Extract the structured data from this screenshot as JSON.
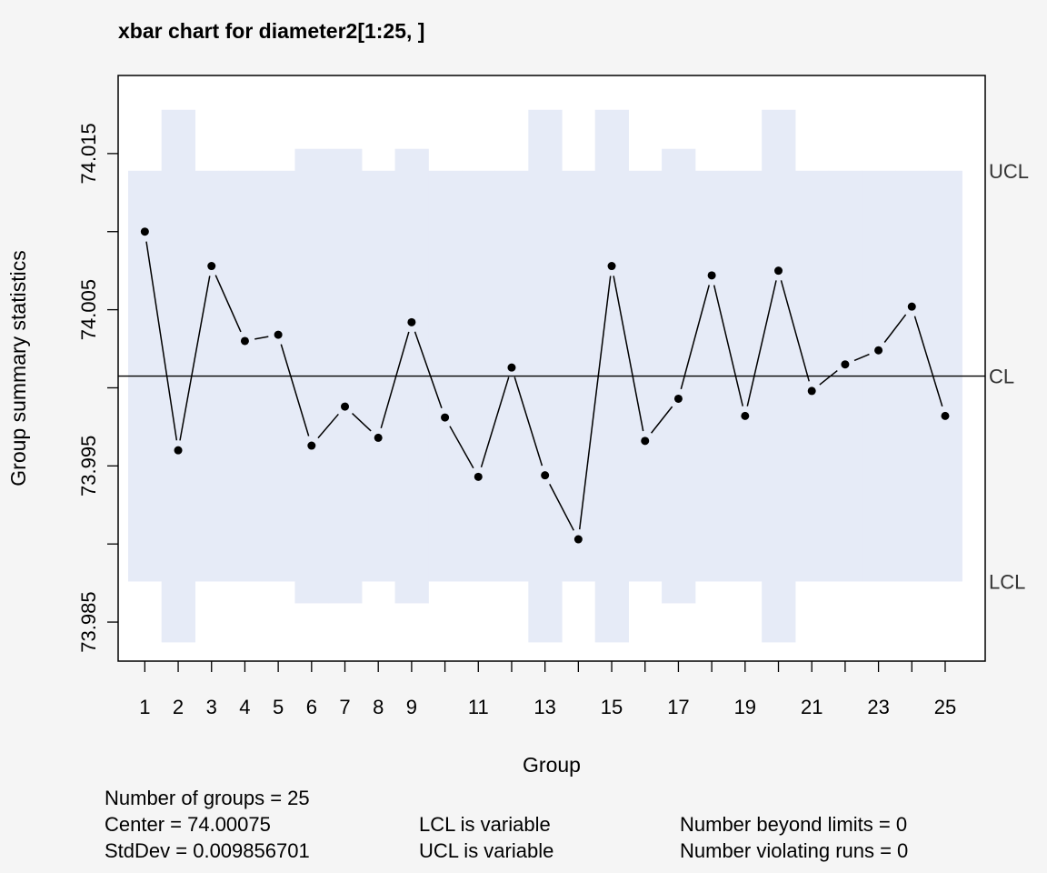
{
  "chart_data": {
    "type": "line",
    "title": "xbar chart for diameter2[1:25, ]",
    "xlabel": "Group",
    "ylabel": "Group summary statistics",
    "x": [
      1,
      2,
      3,
      4,
      5,
      6,
      7,
      8,
      9,
      10,
      11,
      12,
      13,
      14,
      15,
      16,
      17,
      18,
      19,
      20,
      21,
      22,
      23,
      24,
      25
    ],
    "values": [
      74.01,
      73.996,
      74.0078,
      74.003,
      74.0034,
      73.9963,
      73.9988,
      73.9968,
      74.0042,
      73.9981,
      73.9943,
      74.0013,
      73.9944,
      73.9903,
      74.0078,
      73.9966,
      73.9993,
      74.0072,
      73.9982,
      74.0075,
      73.9998,
      74.0015,
      74.0024,
      74.0052,
      73.9982
    ],
    "center": 74.00075,
    "ucl": [
      74.0139,
      74.0178,
      74.0139,
      74.0139,
      74.0139,
      74.0153,
      74.0153,
      74.0139,
      74.0153,
      74.0139,
      74.0139,
      74.0139,
      74.0178,
      74.0139,
      74.0178,
      74.0139,
      74.0153,
      74.0139,
      74.0139,
      74.0178,
      74.0139,
      74.0139,
      74.0139,
      74.0139,
      74.0139
    ],
    "lcl": [
      73.9876,
      73.9837,
      73.9876,
      73.9876,
      73.9876,
      73.9862,
      73.9862,
      73.9876,
      73.9862,
      73.9876,
      73.9876,
      73.9876,
      73.9837,
      73.9876,
      73.9837,
      73.9876,
      73.9862,
      73.9876,
      73.9876,
      73.9837,
      73.9876,
      73.9876,
      73.9876,
      73.9876,
      73.9876
    ],
    "ylim": [
      73.9825,
      74.02
    ],
    "xlim": [
      0.2,
      26.2
    ],
    "yticks": [
      73.985,
      73.99,
      73.995,
      74.0,
      74.005,
      74.01,
      74.015
    ],
    "ytick_labels": [
      "73.985",
      "",
      "73.995",
      "",
      "74.005",
      "",
      "74.015"
    ],
    "xtick_labels": [
      "1",
      "2",
      "3",
      "4",
      "5",
      "6",
      "7",
      "8",
      "9",
      "",
      "11",
      "",
      "13",
      "",
      "15",
      "",
      "17",
      "",
      "19",
      "",
      "21",
      "",
      "23",
      "",
      "25"
    ],
    "limit_labels": {
      "ucl": "UCL",
      "center": "CL",
      "lcl": "LCL"
    },
    "grid": false,
    "colors": {
      "limits_fill": "#e6ebf7",
      "line": "#000000",
      "background": "#f5f5f5",
      "plot_background": "#ffffff"
    }
  },
  "stats": {
    "groups": "Number of groups = 25",
    "center": "Center = 74.00075",
    "stddev": "StdDev = 0.009856701",
    "lcl_note": "LCL is variable",
    "ucl_note": "UCL is variable",
    "beyond": "Number beyond limits = 0",
    "violating": "Number violating runs = 0"
  }
}
